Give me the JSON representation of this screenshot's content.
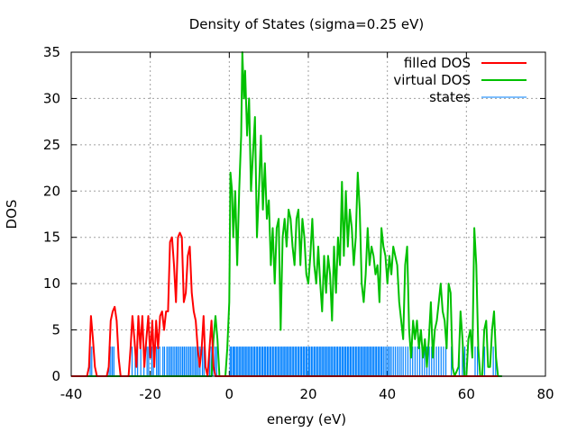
{
  "chart_data": {
    "type": "line",
    "title": "Density of States (sigma=0.25 eV)",
    "xlabel": "energy (eV)",
    "ylabel": "DOS",
    "xlim": [
      -40,
      80
    ],
    "ylim": [
      0,
      35
    ],
    "xticks": [
      -40,
      -20,
      0,
      20,
      40,
      60,
      80
    ],
    "yticks": [
      0,
      5,
      10,
      15,
      20,
      25,
      30,
      35
    ],
    "grid": true,
    "legend_position": "top-right",
    "series": [
      {
        "name": "filled DOS",
        "color": "#ff0000",
        "points": [
          [
            -40,
            0
          ],
          [
            -36,
            0
          ],
          [
            -35.5,
            1
          ],
          [
            -35,
            6.5
          ],
          [
            -34.5,
            4
          ],
          [
            -34,
            1
          ],
          [
            -33.5,
            0
          ],
          [
            -31,
            0
          ],
          [
            -30.5,
            1
          ],
          [
            -30,
            6
          ],
          [
            -29.5,
            7
          ],
          [
            -29,
            7.5
          ],
          [
            -28.5,
            6
          ],
          [
            -28,
            2
          ],
          [
            -27.5,
            0
          ],
          [
            -25.5,
            0
          ],
          [
            -25,
            3
          ],
          [
            -24.5,
            6.5
          ],
          [
            -24,
            4
          ],
          [
            -23.5,
            1
          ],
          [
            -23,
            6.5
          ],
          [
            -22.5,
            3
          ],
          [
            -22,
            6.5
          ],
          [
            -21.5,
            1
          ],
          [
            -21,
            4
          ],
          [
            -20.5,
            6.5
          ],
          [
            -20,
            2
          ],
          [
            -19.5,
            6
          ],
          [
            -19,
            1
          ],
          [
            -18.5,
            6
          ],
          [
            -18,
            3
          ],
          [
            -17.5,
            6.5
          ],
          [
            -17,
            7
          ],
          [
            -16.5,
            5
          ],
          [
            -16,
            7
          ],
          [
            -15.5,
            7
          ],
          [
            -15,
            14.5
          ],
          [
            -14.5,
            15
          ],
          [
            -14,
            12
          ],
          [
            -13.5,
            8
          ],
          [
            -13,
            15
          ],
          [
            -12.5,
            15.5
          ],
          [
            -12,
            15
          ],
          [
            -11.5,
            8
          ],
          [
            -11,
            9
          ],
          [
            -10.5,
            13
          ],
          [
            -10,
            14
          ],
          [
            -9.5,
            9
          ],
          [
            -9,
            7
          ],
          [
            -8.5,
            6
          ],
          [
            -8,
            3
          ],
          [
            -7.5,
            1
          ],
          [
            -7,
            3
          ],
          [
            -6.5,
            6.5
          ],
          [
            -6,
            1
          ],
          [
            -5.5,
            0
          ],
          [
            -5,
            3
          ],
          [
            -4.5,
            6
          ],
          [
            -4,
            1
          ],
          [
            -3.5,
            0
          ],
          [
            68,
            0
          ]
        ]
      },
      {
        "name": "virtual DOS",
        "color": "#00c000",
        "points": [
          [
            -37,
            0
          ],
          [
            -4.5,
            0
          ],
          [
            -4,
            4
          ],
          [
            -3.5,
            6.5
          ],
          [
            -3,
            4
          ],
          [
            -2.5,
            0
          ],
          [
            -1,
            0
          ],
          [
            -0.5,
            3
          ],
          [
            0,
            8
          ],
          [
            0.3,
            22
          ],
          [
            0.7,
            20
          ],
          [
            1,
            15
          ],
          [
            1.5,
            20
          ],
          [
            2,
            12
          ],
          [
            2.5,
            20
          ],
          [
            3,
            26
          ],
          [
            3.3,
            35
          ],
          [
            3.7,
            30
          ],
          [
            4,
            33
          ],
          [
            4.5,
            26
          ],
          [
            5,
            30
          ],
          [
            5.5,
            20
          ],
          [
            6,
            24
          ],
          [
            6.5,
            28
          ],
          [
            7,
            15
          ],
          [
            7.5,
            20
          ],
          [
            8,
            26
          ],
          [
            8.5,
            18
          ],
          [
            9,
            23
          ],
          [
            9.5,
            17
          ],
          [
            10,
            19
          ],
          [
            10.5,
            12
          ],
          [
            11,
            16
          ],
          [
            11.5,
            10
          ],
          [
            12,
            16
          ],
          [
            12.5,
            17
          ],
          [
            13,
            5
          ],
          [
            13.5,
            15
          ],
          [
            14,
            17
          ],
          [
            14.5,
            14
          ],
          [
            15,
            18
          ],
          [
            15.5,
            17
          ],
          [
            16,
            14
          ],
          [
            16.5,
            12
          ],
          [
            17,
            17
          ],
          [
            17.5,
            18
          ],
          [
            18,
            12
          ],
          [
            18.5,
            17
          ],
          [
            19,
            15
          ],
          [
            19.5,
            11
          ],
          [
            20,
            10
          ],
          [
            20.5,
            13
          ],
          [
            21,
            17
          ],
          [
            21.5,
            12
          ],
          [
            22,
            10
          ],
          [
            22.5,
            14
          ],
          [
            23,
            10
          ],
          [
            23.5,
            7
          ],
          [
            24,
            13
          ],
          [
            24.5,
            9
          ],
          [
            25,
            13
          ],
          [
            25.5,
            11
          ],
          [
            26,
            6
          ],
          [
            26.5,
            14
          ],
          [
            27,
            9
          ],
          [
            27.5,
            15
          ],
          [
            28,
            12
          ],
          [
            28.5,
            21
          ],
          [
            29,
            13
          ],
          [
            29.5,
            20
          ],
          [
            30,
            14
          ],
          [
            30.5,
            18
          ],
          [
            31,
            16
          ],
          [
            31.5,
            12
          ],
          [
            32,
            15
          ],
          [
            32.5,
            22
          ],
          [
            33,
            18
          ],
          [
            33.5,
            10
          ],
          [
            34,
            8
          ],
          [
            34.5,
            11
          ],
          [
            35,
            16
          ],
          [
            35.5,
            12
          ],
          [
            36,
            14
          ],
          [
            36.5,
            13
          ],
          [
            37,
            11
          ],
          [
            37.5,
            12
          ],
          [
            38,
            8
          ],
          [
            38.5,
            16
          ],
          [
            39,
            14
          ],
          [
            39.5,
            13
          ],
          [
            40,
            10
          ],
          [
            40.5,
            13
          ],
          [
            41,
            11
          ],
          [
            41.5,
            14
          ],
          [
            42,
            13
          ],
          [
            42.5,
            12
          ],
          [
            43,
            8
          ],
          [
            43.5,
            6
          ],
          [
            44,
            4
          ],
          [
            44.5,
            12
          ],
          [
            45,
            14
          ],
          [
            45.5,
            5
          ],
          [
            46,
            2
          ],
          [
            46.5,
            6
          ],
          [
            47,
            4
          ],
          [
            47.5,
            6
          ],
          [
            48,
            3
          ],
          [
            48.5,
            5
          ],
          [
            49,
            2
          ],
          [
            49.5,
            4
          ],
          [
            50,
            1
          ],
          [
            50.5,
            4
          ],
          [
            51,
            8
          ],
          [
            51.5,
            2
          ],
          [
            52,
            5
          ],
          [
            52.5,
            6
          ],
          [
            53,
            8
          ],
          [
            53.5,
            10
          ],
          [
            54,
            7
          ],
          [
            54.5,
            6
          ],
          [
            55,
            3
          ],
          [
            55.5,
            10
          ],
          [
            56,
            9
          ],
          [
            56.5,
            1
          ],
          [
            57,
            0
          ],
          [
            58,
            1
          ],
          [
            58.5,
            7
          ],
          [
            59,
            4
          ],
          [
            59.5,
            0
          ],
          [
            60,
            0
          ],
          [
            60.5,
            4
          ],
          [
            61,
            5
          ],
          [
            61.5,
            2
          ],
          [
            62,
            16
          ],
          [
            62.5,
            12
          ],
          [
            63,
            3
          ],
          [
            63.5,
            0
          ],
          [
            64,
            0
          ],
          [
            64.5,
            5
          ],
          [
            65,
            6
          ],
          [
            65.5,
            1
          ],
          [
            66,
            1
          ],
          [
            66.5,
            5
          ],
          [
            67,
            7
          ],
          [
            67.5,
            2
          ],
          [
            68,
            0
          ],
          [
            69,
            0
          ]
        ]
      },
      {
        "name": "states",
        "color": "#0080ff",
        "height": 3.2,
        "energies": [
          -35.2,
          -34.8,
          -30.4,
          -30,
          -29.6,
          -29.2,
          -24.6,
          -23.8,
          -23.2,
          -22.4,
          -21.6,
          -20.8,
          -20.4,
          -19.6,
          -19.2,
          -18.4,
          -18,
          -17.6,
          -16.8,
          -16.4,
          -15.8,
          -15.4,
          -15,
          -14.6,
          -14.2,
          -13.8,
          -13.4,
          -13,
          -12.6,
          -12.2,
          -11.8,
          -11.4,
          -11,
          -10.6,
          -10.2,
          -9.8,
          -9.4,
          -9,
          -8.6,
          -8.2,
          -7.8,
          -7.4,
          -6.8,
          -6.4,
          -5,
          -4.6,
          -4.2,
          -3.6,
          -3.2,
          0.2,
          0.5,
          0.9,
          1.2,
          1.5,
          1.9,
          2.2,
          2.6,
          2.9,
          3.3,
          3.6,
          4.0,
          4.3,
          4.7,
          5.0,
          5.4,
          5.7,
          6.1,
          6.4,
          6.8,
          7.1,
          7.5,
          7.8,
          8.2,
          8.5,
          8.9,
          9.2,
          9.6,
          9.9,
          10.3,
          10.6,
          11.0,
          11.3,
          11.7,
          12.0,
          12.4,
          12.7,
          13.1,
          13.4,
          13.8,
          14.1,
          14.5,
          14.8,
          15.2,
          15.5,
          15.9,
          16.2,
          16.6,
          16.9,
          17.3,
          17.6,
          18.0,
          18.3,
          18.7,
          19.0,
          19.4,
          19.7,
          20.1,
          20.4,
          20.8,
          21.1,
          21.5,
          21.8,
          22.2,
          22.5,
          22.9,
          23.2,
          23.6,
          23.9,
          24.3,
          24.6,
          25.0,
          25.3,
          25.7,
          26.0,
          26.4,
          26.7,
          27.1,
          27.4,
          27.8,
          28.1,
          28.5,
          28.8,
          29.2,
          29.5,
          29.9,
          30.2,
          30.6,
          30.9,
          31.3,
          31.6,
          32.0,
          32.3,
          32.7,
          33.0,
          33.4,
          33.7,
          34.1,
          34.4,
          34.8,
          35.1,
          35.5,
          35.8,
          36.2,
          36.5,
          36.9,
          37.2,
          37.6,
          37.9,
          38.3,
          38.6,
          39.0,
          39.4,
          39.8,
          40.2,
          40.6,
          41.0,
          41.5,
          42.0,
          42.5,
          43.0,
          43.5,
          44.0,
          44.6,
          45.2,
          45.8,
          46.4,
          47.0,
          47.6,
          48.2,
          48.8,
          49.4,
          50.0,
          50.6,
          51.2,
          51.8,
          52.4,
          53.0,
          53.6,
          54.2,
          54.8,
          56.2,
          58.2,
          59.0,
          59.6,
          62.2,
          62.8,
          64.6,
          66.8,
          67.4
        ]
      }
    ]
  }
}
